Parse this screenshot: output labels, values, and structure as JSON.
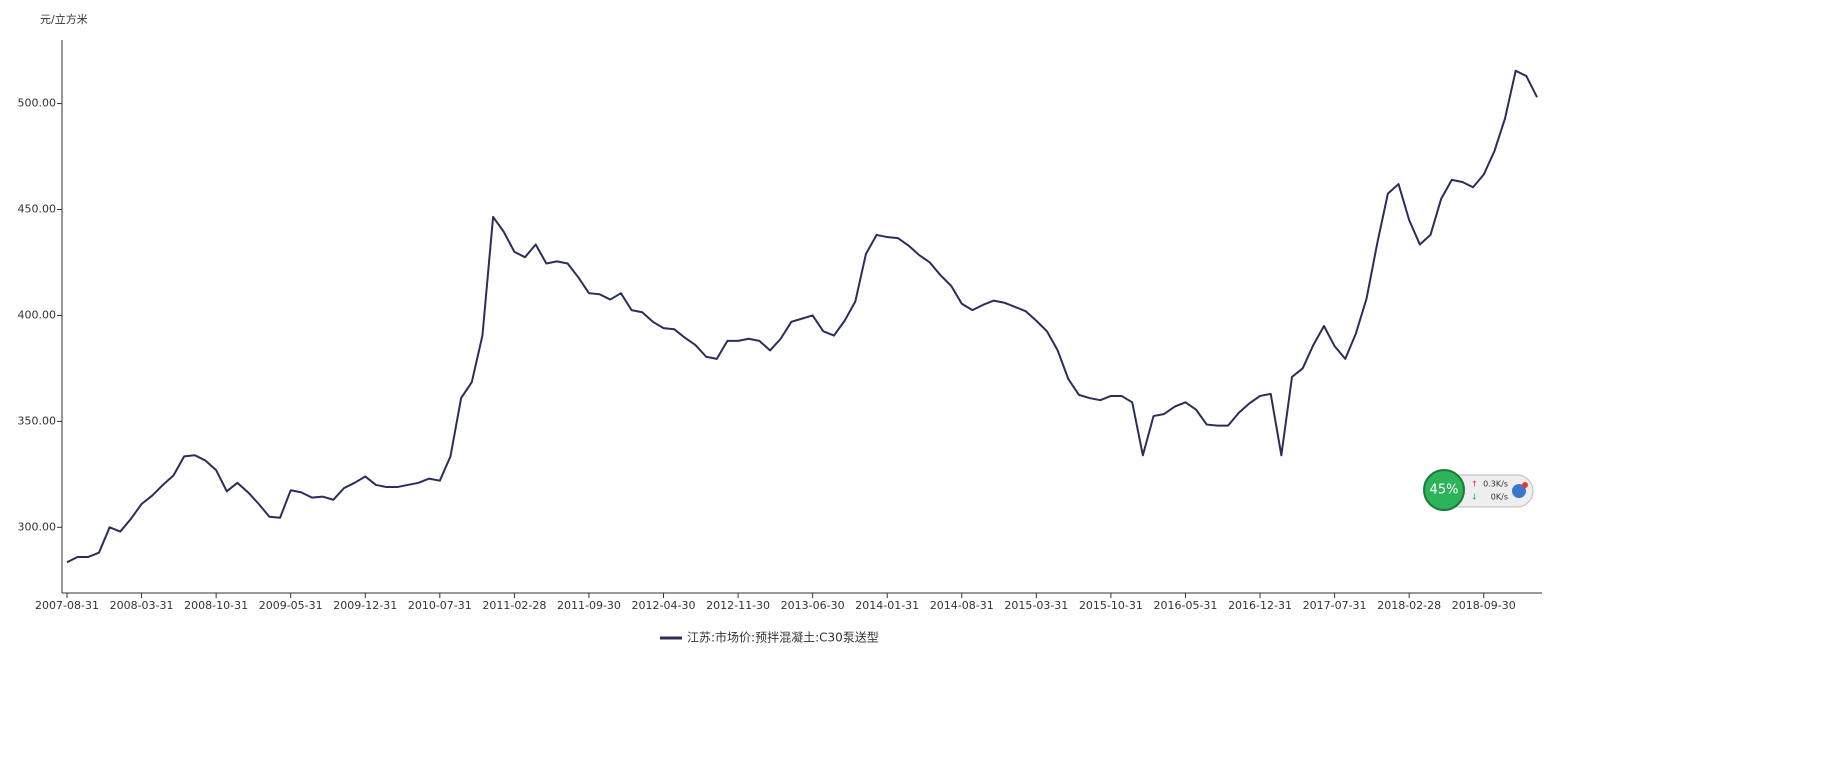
{
  "chart_data": {
    "type": "line",
    "y_label": "元/立方米",
    "categories": [
      "2007-08-31",
      null,
      null,
      null,
      null,
      null,
      null,
      "2008-03-31",
      null,
      null,
      null,
      null,
      null,
      null,
      "2008-10-31",
      null,
      null,
      null,
      null,
      null,
      null,
      "2009-05-31",
      null,
      null,
      null,
      null,
      null,
      null,
      "2009-12-31",
      null,
      null,
      null,
      null,
      null,
      null,
      "2010-07-31",
      null,
      null,
      null,
      null,
      null,
      null,
      "2011-02-28",
      null,
      null,
      null,
      null,
      null,
      null,
      "2011-09-30",
      null,
      null,
      null,
      null,
      null,
      null,
      "2012-04-30",
      null,
      null,
      null,
      null,
      null,
      null,
      "2012-11-30",
      null,
      null,
      null,
      null,
      null,
      null,
      "2013-06-30",
      null,
      null,
      null,
      null,
      null,
      null,
      "2014-01-31",
      null,
      null,
      null,
      null,
      null,
      null,
      "2014-08-31",
      null,
      null,
      null,
      null,
      null,
      null,
      "2015-03-31",
      null,
      null,
      null,
      null,
      null,
      null,
      "2015-10-31",
      null,
      null,
      null,
      null,
      null,
      null,
      "2016-05-31",
      null,
      null,
      null,
      null,
      null,
      null,
      "2016-12-31",
      null,
      null,
      null,
      null,
      null,
      null,
      "2017-07-31",
      null,
      null,
      null,
      null,
      null,
      null,
      "2018-02-28",
      null,
      null,
      null,
      null,
      null,
      null,
      "2018-09-30",
      null,
      null,
      null,
      null,
      null
    ],
    "series": [
      {
        "name": "江苏:市场价:预拌混凝土:C30泵送型",
        "color": "#2b2d5b",
        "values": [
          283.5,
          286,
          286,
          288,
          300,
          298,
          304,
          311,
          315,
          320,
          324.5,
          333.5,
          334,
          331.5,
          327,
          317,
          321,
          316.5,
          311,
          305,
          304.5,
          317.5,
          316.5,
          314,
          314.5,
          313,
          318.5,
          321,
          324,
          320,
          319,
          319,
          320,
          321,
          323,
          322,
          333.5,
          361,
          368.5,
          390.5,
          446.5,
          439.5,
          430,
          427.5,
          433.5,
          424.5,
          425.5,
          424.5,
          418,
          410.5,
          410,
          407.5,
          410.5,
          402.5,
          401.5,
          397,
          394,
          393.5,
          389.5,
          386,
          380.5,
          379.5,
          388,
          388,
          389,
          388,
          383.5,
          389,
          397,
          398.5,
          400,
          392.5,
          390.5,
          397.5,
          406.5,
          429,
          438,
          437,
          436.5,
          433,
          428.5,
          425,
          419,
          414,
          405.5,
          402.5,
          405,
          407,
          406,
          404,
          402,
          397.5,
          392.5,
          383.5,
          370,
          362.5,
          361,
          360,
          362,
          362,
          359,
          334,
          352.5,
          353.5,
          357,
          359,
          355.5,
          348.5,
          348,
          348,
          354,
          358.5,
          362,
          363,
          334,
          371,
          375,
          386,
          395,
          385.5,
          379.5,
          391.5,
          408,
          434,
          457.5,
          462,
          445,
          433.5,
          438,
          455,
          464,
          463,
          460.5,
          466.5,
          477.5,
          493,
          515.5,
          513,
          503
        ]
      }
    ],
    "ylim": [
      269,
      530
    ],
    "yticks": [
      {
        "value": 300,
        "label": "300.00"
      },
      {
        "value": 350,
        "label": "350.00"
      },
      {
        "value": 400,
        "label": "400.00"
      },
      {
        "value": 450,
        "label": "450.00"
      },
      {
        "value": 500,
        "label": "500.00"
      }
    ],
    "grid": false
  },
  "widget": {
    "percent": "45%",
    "upload": "0.3K/s",
    "download": "0K/s"
  }
}
